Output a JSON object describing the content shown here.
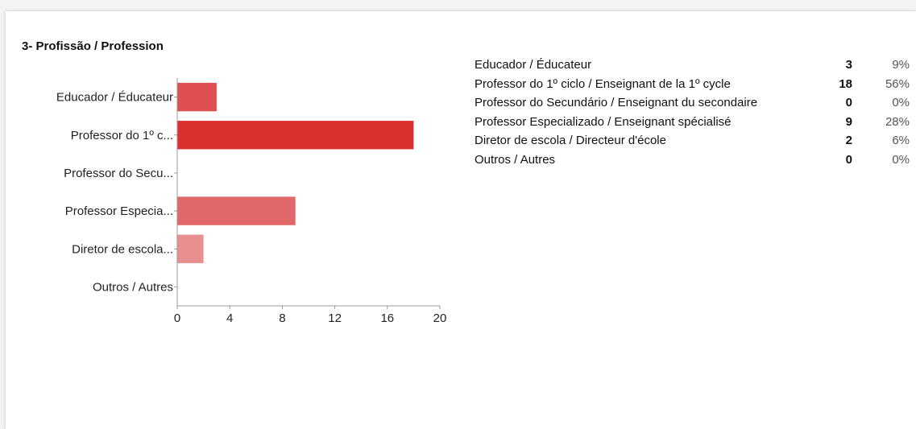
{
  "question": {
    "title": "3- Profissão / Profession"
  },
  "chart_data": {
    "type": "bar",
    "orientation": "horizontal",
    "categories": [
      "Educador / Éducateur",
      "Professor do 1º c...",
      "Professor do Secu...",
      "Professor Especia...",
      "Diretor de escola...",
      "Outros / Autres"
    ],
    "values": [
      3,
      18,
      0,
      9,
      2,
      0
    ],
    "colors": [
      "#e05050",
      "#dc3030",
      "#e07070",
      "#e06868",
      "#e89090",
      "#f0b0b0"
    ],
    "xlim": [
      0,
      20
    ],
    "xticks": [
      0,
      4,
      8,
      12,
      16,
      20
    ],
    "grid": false,
    "legend": "none"
  },
  "summary": [
    {
      "label": "Educador / Éducateur",
      "count": "3",
      "percent": "9%"
    },
    {
      "label": "Professor do 1º ciclo / Enseignant de la 1º cycle",
      "count": "18",
      "percent": "56%"
    },
    {
      "label": "Professor do Secundário / Enseignant du secondaire",
      "count": "0",
      "percent": "0%"
    },
    {
      "label": "Professor Especializado / Enseignant spécialisé",
      "count": "9",
      "percent": "28%"
    },
    {
      "label": "Diretor de escola / Directeur d'école",
      "count": "2",
      "percent": "6%"
    },
    {
      "label": "Outros / Autres",
      "count": "0",
      "percent": "0%"
    }
  ]
}
